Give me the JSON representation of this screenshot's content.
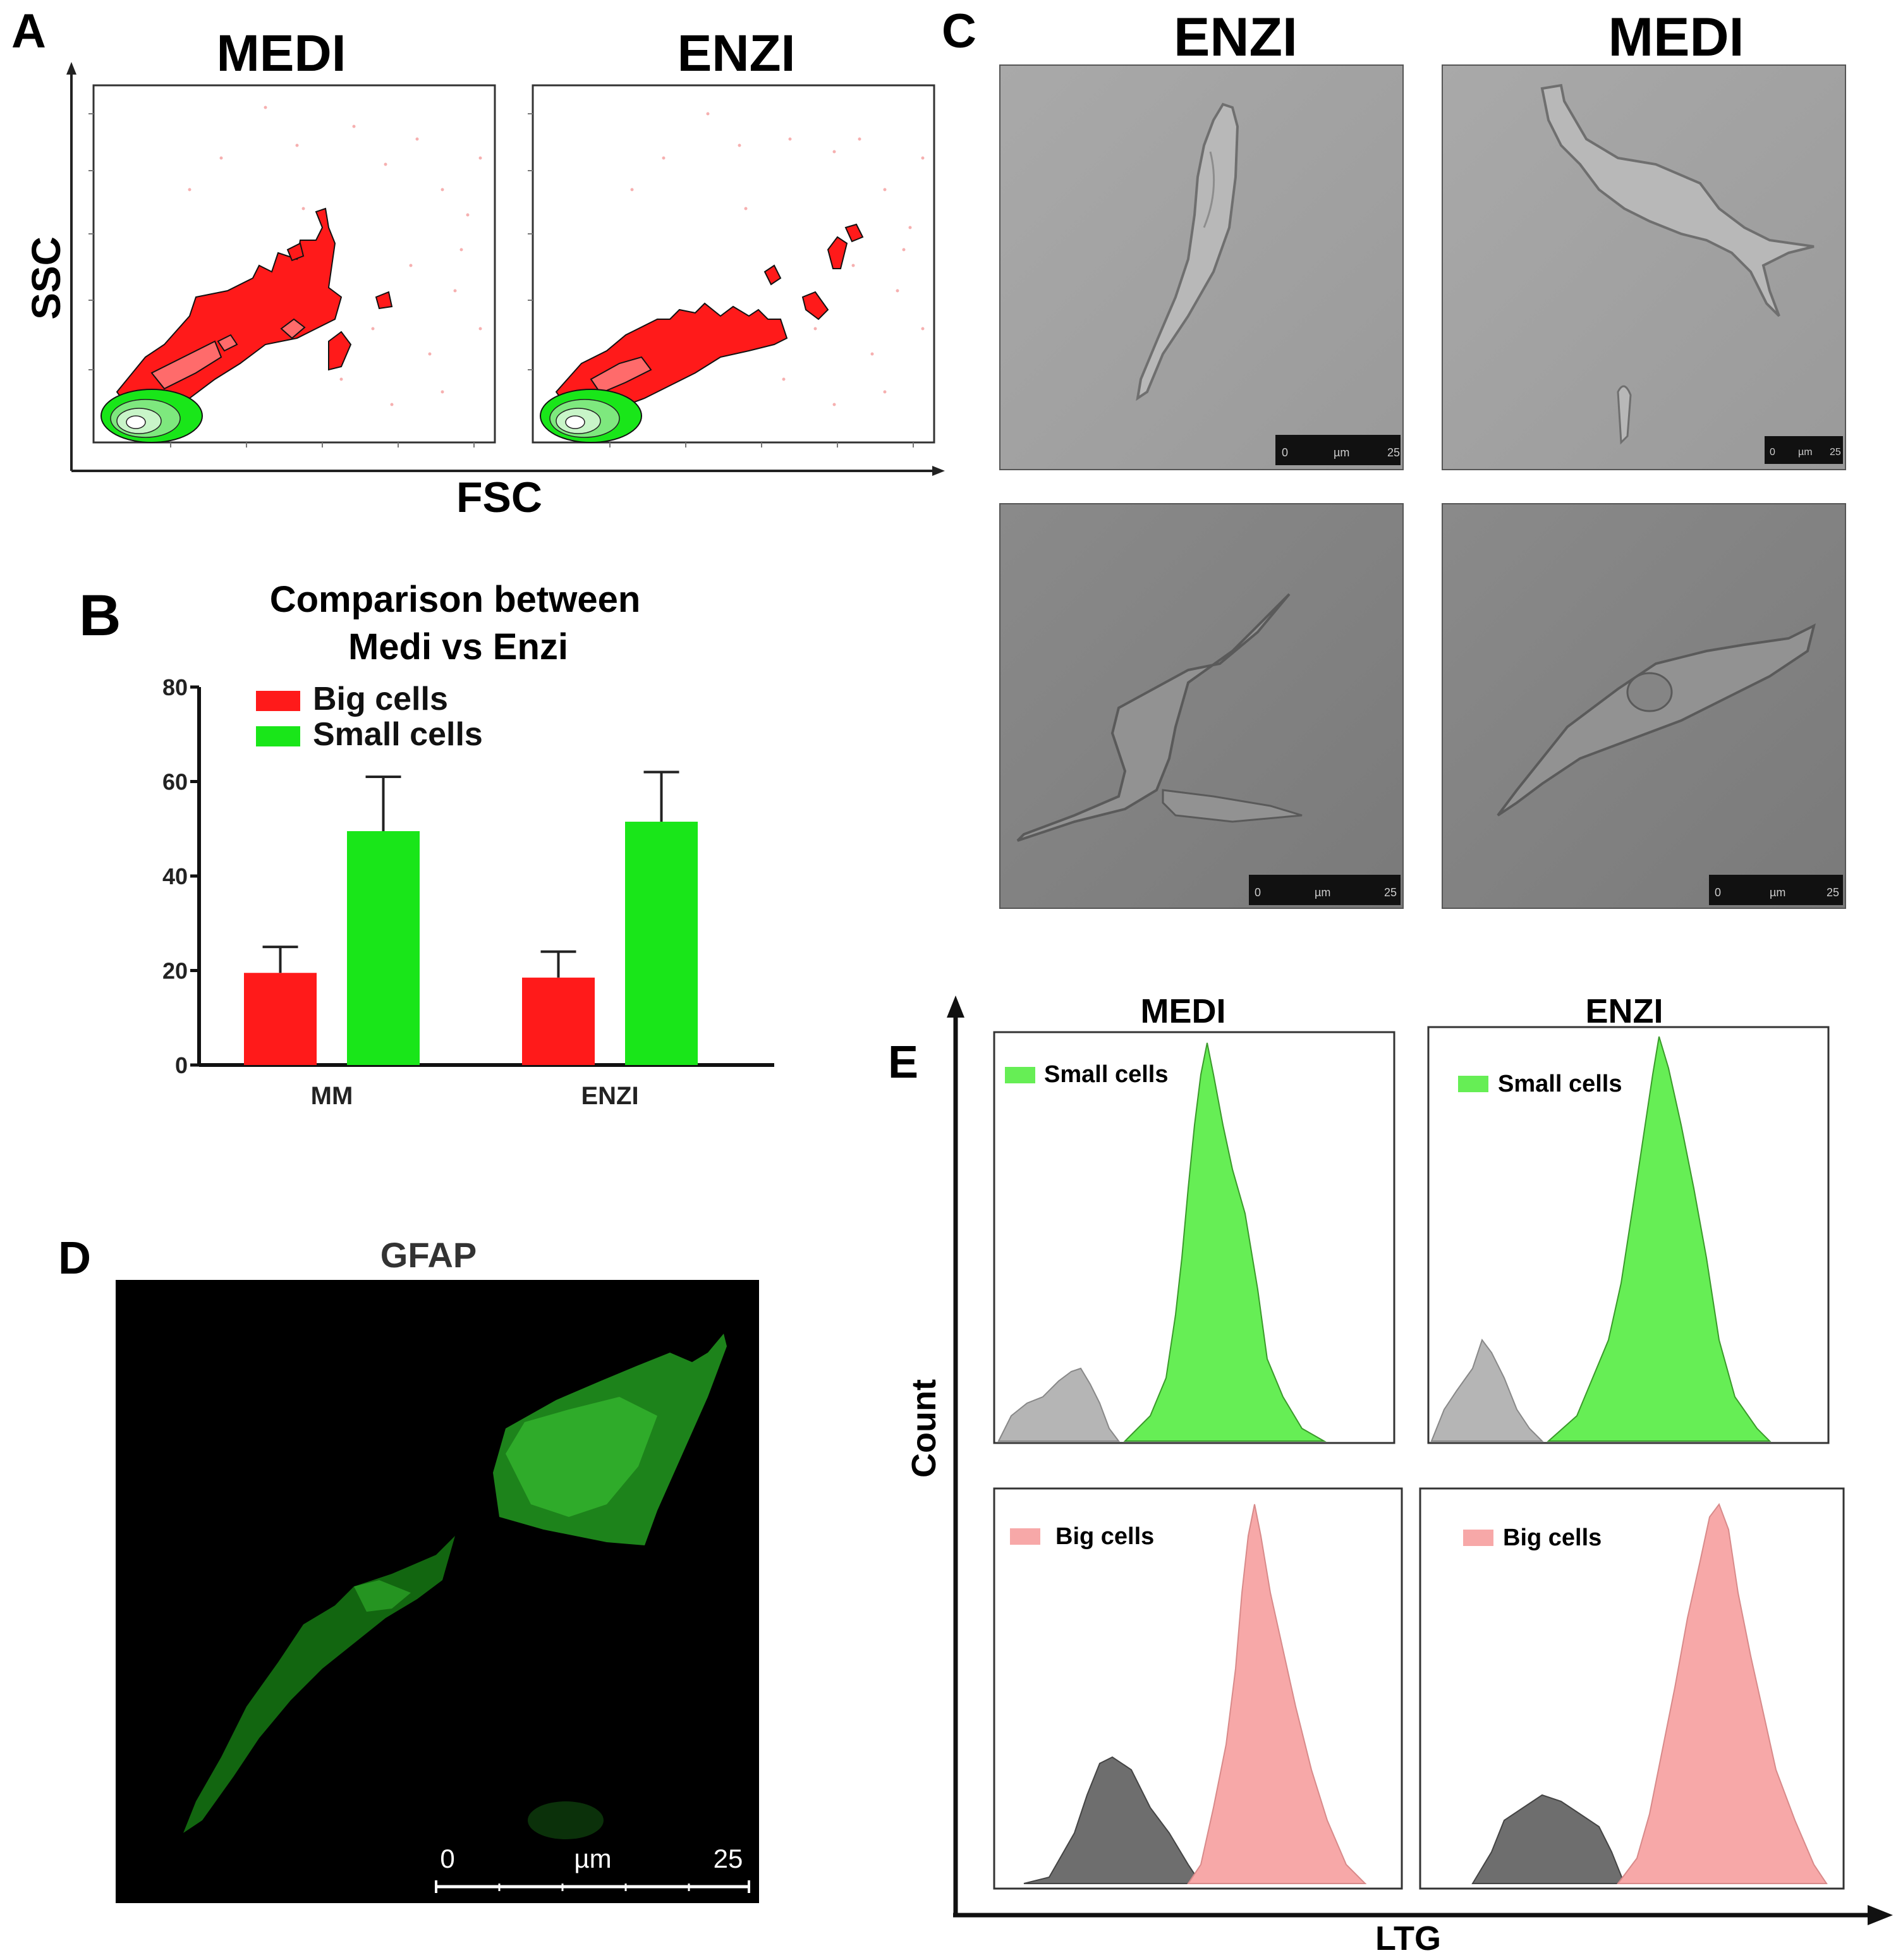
{
  "panel_letters": {
    "a": "A",
    "b": "B",
    "c": "C",
    "d": "D",
    "e": "E"
  },
  "colors": {
    "red": "#ff1a1a",
    "green": "#19e619",
    "pink": "#f7a8a8",
    "histo_green": "#66ee55",
    "gray": "#b5b5b5",
    "darkgray": "#6e6e6e"
  },
  "panelA": {
    "titles": [
      "MEDI",
      "ENZI"
    ],
    "xlabel": "FSC",
    "ylabel": "SSC"
  },
  "panelC": {
    "titles": [
      "ENZI",
      "MEDI"
    ],
    "scalebar": {
      "start": "0",
      "unit": "µm",
      "end": "25"
    }
  },
  "panelD": {
    "title": "GFAP",
    "scalebar": {
      "start": "0",
      "unit": "µm",
      "end": "25"
    }
  },
  "panelE": {
    "titles": [
      "MEDI",
      "ENZI"
    ],
    "xlabel": "LTG",
    "ylabel": "Count",
    "legend_small": "Small cells",
    "legend_big": "Big cells"
  },
  "chart_data": [
    {
      "type": "bar",
      "title": "Comparison between Medi vs Enzi",
      "title_lines": [
        "Comparison between",
        "Medi vs Enzi"
      ],
      "categories": [
        "MM",
        "ENZI"
      ],
      "series": [
        {
          "name": "Big cells",
          "color": "#ff1a1a",
          "values": [
            19.5,
            18.5
          ],
          "errors": [
            5.5,
            5.5
          ]
        },
        {
          "name": "Small cells",
          "color": "#19e619",
          "values": [
            49.5,
            51.5
          ],
          "errors": [
            11.5,
            10.5
          ]
        }
      ],
      "ylim": [
        0,
        80
      ],
      "yticks": [
        0,
        20,
        40,
        60,
        80
      ],
      "xlabel": "",
      "ylabel": ""
    }
  ]
}
